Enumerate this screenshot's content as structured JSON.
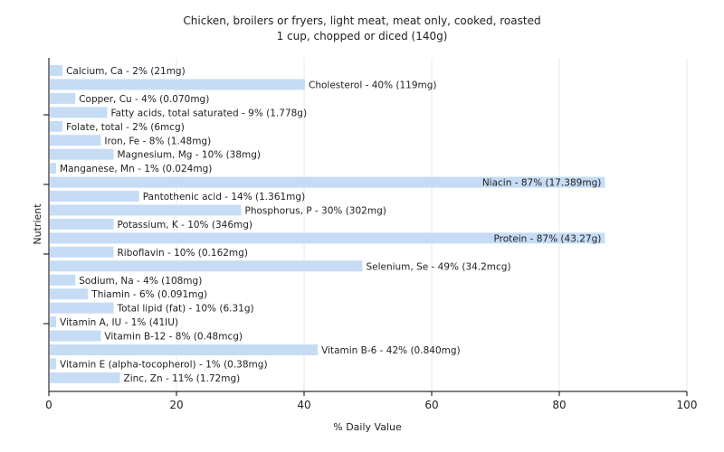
{
  "chart_data": {
    "type": "bar",
    "orientation": "horizontal",
    "title": "Chicken, broilers or fryers, light meat, meat only, cooked, roasted",
    "subtitle": "1 cup, chopped or diced (140g)",
    "xlabel": "% Daily Value",
    "ylabel": "Nutrient",
    "xlim": [
      0,
      100
    ],
    "xticks": [
      0,
      20,
      40,
      60,
      80,
      100
    ],
    "grid": true,
    "bar_color": "#c6dcf5",
    "categories": [
      "Calcium, Ca",
      "Cholesterol",
      "Copper, Cu",
      "Fatty acids, total saturated",
      "Folate, total",
      "Iron, Fe",
      "Magnesium, Mg",
      "Manganese, Mn",
      "Niacin",
      "Pantothenic acid",
      "Phosphorus, P",
      "Potassium, K",
      "Protein",
      "Riboflavin",
      "Selenium, Se",
      "Sodium, Na",
      "Thiamin",
      "Total lipid (fat)",
      "Vitamin A, IU",
      "Vitamin B-12",
      "Vitamin B-6",
      "Vitamin E (alpha-tocopherol)",
      "Zinc, Zn"
    ],
    "values": [
      2,
      40,
      4,
      9,
      2,
      8,
      10,
      1,
      87,
      14,
      30,
      10,
      87,
      10,
      49,
      4,
      6,
      10,
      1,
      8,
      42,
      1,
      11
    ],
    "labels": [
      "Calcium, Ca - 2% (21mg)",
      "Cholesterol - 40% (119mg)",
      "Copper, Cu - 4% (0.070mg)",
      "Fatty acids, total saturated - 9% (1.778g)",
      "Folate, total - 2% (6mcg)",
      "Iron, Fe - 8% (1.48mg)",
      "Magnesium, Mg - 10% (38mg)",
      "Manganese, Mn - 1% (0.024mg)",
      "Niacin - 87% (17.389mg)",
      "Pantothenic acid - 14% (1.361mg)",
      "Phosphorus, P - 30% (302mg)",
      "Potassium, K - 10% (346mg)",
      "Protein - 87% (43.27g)",
      "Riboflavin - 10% (0.162mg)",
      "Selenium, Se - 49% (34.2mcg)",
      "Sodium, Na - 4% (108mg)",
      "Thiamin - 6% (0.091mg)",
      "Total lipid (fat) - 10% (6.31g)",
      "Vitamin A, IU - 1% (41IU)",
      "Vitamin B-12 - 8% (0.48mcg)",
      "Vitamin B-6 - 42% (0.840mg)",
      "Vitamin E (alpha-tocopherol) - 1% (0.38mg)",
      "Zinc, Zn - 11% (1.72mg)"
    ]
  }
}
